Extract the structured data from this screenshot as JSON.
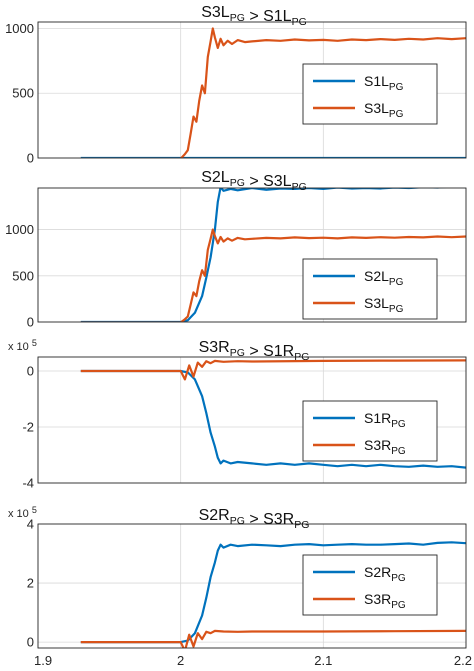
{
  "chart_data": [
    {
      "type": "line",
      "title": "S3L_PG > S1L_PG",
      "title_parts": [
        "S3L",
        "PG",
        " > S1L",
        "PG"
      ],
      "ylim": [
        0,
        1050
      ],
      "yticks": [
        0,
        500,
        1000
      ],
      "ytick_labels": [
        "0",
        "500",
        "1000"
      ],
      "ylabel": "",
      "xlabel": "",
      "grid": true,
      "legend_position": "right",
      "series": [
        {
          "name": "S1L_PG",
          "name_parts": [
            "S1L",
            "PG"
          ],
          "color": "#0072BD",
          "x": [
            1.93,
            2.0,
            2.05,
            2.1,
            2.15,
            2.2
          ],
          "y": [
            0,
            0,
            0,
            0,
            0,
            0
          ]
        },
        {
          "name": "S3L_PG",
          "name_parts": [
            "S3L",
            "PG"
          ],
          "color": "#D95319",
          "x": [
            1.93,
            2.0,
            2.003,
            2.005,
            2.007,
            2.009,
            2.011,
            2.013,
            2.015,
            2.017,
            2.019,
            2.021,
            2.0225,
            2.024,
            2.026,
            2.028,
            2.03,
            2.033,
            2.036,
            2.04,
            2.045,
            2.05,
            2.06,
            2.07,
            2.08,
            2.09,
            2.1,
            2.11,
            2.12,
            2.13,
            2.14,
            2.15,
            2.16,
            2.17,
            2.18,
            2.19,
            2.2
          ],
          "y": [
            -5,
            -5,
            30,
            60,
            190,
            320,
            280,
            440,
            560,
            500,
            780,
            900,
            1000,
            930,
            850,
            920,
            870,
            905,
            880,
            910,
            895,
            900,
            910,
            905,
            915,
            908,
            912,
            905,
            915,
            910,
            918,
            912,
            920,
            915,
            925,
            918,
            925
          ]
        }
      ]
    },
    {
      "type": "line",
      "title": "S2L_PG > S3L_PG",
      "title_parts": [
        "S2L",
        "PG",
        " > S3L",
        "PG"
      ],
      "ylim": [
        0,
        1450
      ],
      "yticks": [
        0,
        500,
        1000
      ],
      "ytick_labels": [
        "0",
        "500",
        "1000"
      ],
      "ylabel": "",
      "xlabel": "",
      "grid": true,
      "legend_position": "right",
      "series": [
        {
          "name": "S2L_PG",
          "name_parts": [
            "S2L",
            "PG"
          ],
          "color": "#0072BD",
          "x": [
            1.93,
            2.0,
            2.005,
            2.01,
            2.015,
            2.018,
            2.021,
            2.024,
            2.026,
            2.028,
            2.03,
            2.035,
            2.04,
            2.05,
            2.06,
            2.07,
            2.08,
            2.09,
            2.1,
            2.11,
            2.12,
            2.13,
            2.14,
            2.15,
            2.16,
            2.17,
            2.18,
            2.19,
            2.2
          ],
          "y": [
            0,
            0,
            20,
            100,
            280,
            480,
            700,
            1000,
            1300,
            1460,
            1420,
            1440,
            1425,
            1450,
            1430,
            1445,
            1440,
            1450,
            1440,
            1455,
            1445,
            1450,
            1445,
            1455,
            1450,
            1460,
            1455,
            1465,
            1460
          ]
        },
        {
          "name": "S3L_PG",
          "name_parts": [
            "S3L",
            "PG"
          ],
          "color": "#D95319",
          "x": [
            1.93,
            2.0,
            2.003,
            2.005,
            2.007,
            2.009,
            2.011,
            2.013,
            2.015,
            2.017,
            2.019,
            2.021,
            2.0225,
            2.024,
            2.026,
            2.028,
            2.03,
            2.033,
            2.036,
            2.04,
            2.045,
            2.05,
            2.06,
            2.07,
            2.08,
            2.09,
            2.1,
            2.11,
            2.12,
            2.13,
            2.14,
            2.15,
            2.16,
            2.17,
            2.18,
            2.19,
            2.2
          ],
          "y": [
            -5,
            -5,
            30,
            60,
            190,
            320,
            280,
            440,
            560,
            500,
            780,
            900,
            1000,
            930,
            850,
            920,
            870,
            905,
            880,
            910,
            895,
            900,
            910,
            905,
            915,
            908,
            912,
            905,
            915,
            910,
            918,
            912,
            920,
            915,
            925,
            918,
            925
          ]
        }
      ]
    },
    {
      "type": "line",
      "title": "S3R_PG > S1R_PG",
      "title_parts": [
        "S3R",
        "PG",
        " > S1R",
        "PG"
      ],
      "ylim": [
        -4,
        0.5
      ],
      "yticks": [
        -4,
        -2,
        0
      ],
      "ytick_labels": [
        "-4",
        "-2",
        "0"
      ],
      "y_multiplier_label": "x 10",
      "y_multiplier_exponent": "5",
      "ylabel": "",
      "xlabel": "",
      "grid": true,
      "legend_position": "right",
      "series": [
        {
          "name": "S1R_PG",
          "name_parts": [
            "S1R",
            "PG"
          ],
          "color": "#0072BD",
          "x": [
            1.93,
            2.0,
            2.005,
            2.01,
            2.015,
            2.018,
            2.021,
            2.024,
            2.026,
            2.028,
            2.03,
            2.035,
            2.04,
            2.05,
            2.06,
            2.07,
            2.08,
            2.09,
            2.1,
            2.11,
            2.12,
            2.13,
            2.14,
            2.15,
            2.16,
            2.17,
            2.18,
            2.19,
            2.2
          ],
          "y": [
            0,
            0,
            -0.05,
            -0.3,
            -0.9,
            -1.5,
            -2.2,
            -2.7,
            -3.1,
            -3.3,
            -3.2,
            -3.3,
            -3.25,
            -3.3,
            -3.35,
            -3.3,
            -3.35,
            -3.3,
            -3.35,
            -3.4,
            -3.35,
            -3.4,
            -3.35,
            -3.4,
            -3.42,
            -3.38,
            -3.42,
            -3.4,
            -3.45
          ]
        },
        {
          "name": "S3R_PG",
          "name_parts": [
            "S3R",
            "PG"
          ],
          "color": "#D95319",
          "x": [
            1.93,
            2.0,
            2.003,
            2.006,
            2.009,
            2.012,
            2.015,
            2.018,
            2.021,
            2.024,
            2.03,
            2.04,
            2.05,
            2.1,
            2.15,
            2.2
          ],
          "y": [
            0,
            0,
            -0.3,
            0.2,
            -0.2,
            0.3,
            0.15,
            0.35,
            0.28,
            0.36,
            0.33,
            0.35,
            0.34,
            0.36,
            0.37,
            0.38
          ]
        }
      ]
    },
    {
      "type": "line",
      "title": "S2R_PG > S3R_PG",
      "title_parts": [
        "S2R",
        "PG",
        " > S3R",
        "PG"
      ],
      "ylim": [
        -0.2,
        4
      ],
      "yticks": [
        0,
        2,
        4
      ],
      "ytick_labels": [
        "0",
        "2",
        "4"
      ],
      "y_multiplier_label": "x 10",
      "y_multiplier_exponent": "5",
      "xlim": [
        1.9,
        2.2
      ],
      "xticks": [
        1.9,
        2.0,
        2.1,
        2.2
      ],
      "xtick_labels": [
        "1.9",
        "2",
        "2.1",
        "2.2"
      ],
      "ylabel": "",
      "xlabel": "",
      "grid": true,
      "legend_position": "right",
      "series": [
        {
          "name": "S2R_PG",
          "name_parts": [
            "S2R",
            "PG"
          ],
          "color": "#0072BD",
          "x": [
            1.93,
            2.0,
            2.005,
            2.01,
            2.015,
            2.018,
            2.021,
            2.024,
            2.026,
            2.028,
            2.03,
            2.035,
            2.04,
            2.05,
            2.06,
            2.07,
            2.08,
            2.09,
            2.1,
            2.11,
            2.12,
            2.13,
            2.14,
            2.15,
            2.16,
            2.17,
            2.18,
            2.19,
            2.2
          ],
          "y": [
            0,
            0,
            0.05,
            0.3,
            0.9,
            1.5,
            2.2,
            2.7,
            3.1,
            3.3,
            3.2,
            3.3,
            3.25,
            3.3,
            3.28,
            3.25,
            3.3,
            3.32,
            3.28,
            3.3,
            3.32,
            3.3,
            3.3,
            3.32,
            3.34,
            3.3,
            3.36,
            3.38,
            3.35
          ]
        },
        {
          "name": "S3R_PG",
          "name_parts": [
            "S3R",
            "PG"
          ],
          "color": "#D95319",
          "x": [
            1.93,
            2.0,
            2.003,
            2.006,
            2.009,
            2.012,
            2.015,
            2.018,
            2.021,
            2.024,
            2.03,
            2.04,
            2.05,
            2.1,
            2.15,
            2.2
          ],
          "y": [
            0,
            0,
            -0.3,
            0.25,
            -0.15,
            0.3,
            0.1,
            0.35,
            0.3,
            0.38,
            0.36,
            0.35,
            0.36,
            0.36,
            0.37,
            0.38
          ]
        }
      ]
    }
  ]
}
